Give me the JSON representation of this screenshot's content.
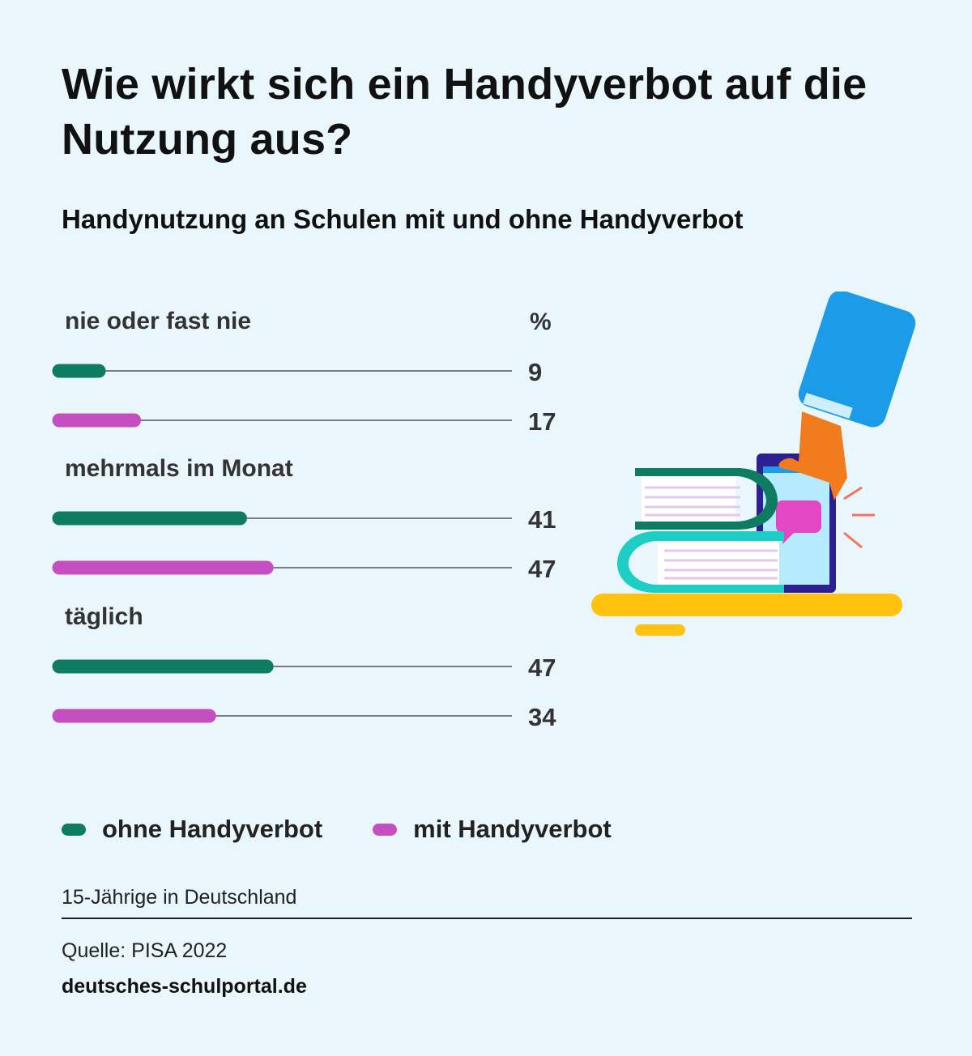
{
  "title": "Wie wirkt sich ein Handyverbot auf die Nutzung aus?",
  "subtitle": "Handynutzung an Schulen mit und ohne Handyverbot",
  "unit": "%",
  "colors": {
    "ohne": "#0e7c61",
    "mit": "#c54ec0",
    "background": "#e9f7fd"
  },
  "chart_data": {
    "type": "bar",
    "orientation": "horizontal",
    "unit": "%",
    "categories": [
      "nie oder fast nie",
      "mehrmals im Monat",
      "täglich"
    ],
    "series": [
      {
        "name": "ohne Handyverbot",
        "color": "#0e7c61",
        "values": [
          9,
          41,
          47
        ]
      },
      {
        "name": "mit Handyverbot",
        "color": "#c54ec0",
        "values": [
          17,
          47,
          34
        ]
      }
    ],
    "xlim": [
      0,
      100
    ],
    "grid": false,
    "legend": "bottom-left"
  },
  "legend": [
    {
      "label": "ohne Handyverbot",
      "color": "#0e7c61"
    },
    {
      "label": "mit Handyverbot",
      "color": "#c54ec0"
    }
  ],
  "footer": {
    "note": "15-Jährige in Deutschland",
    "source": "Quelle: PISA 2022",
    "brand": "deutsches-schulportal.de"
  },
  "illustration": "hand-holding-phone-on-books"
}
